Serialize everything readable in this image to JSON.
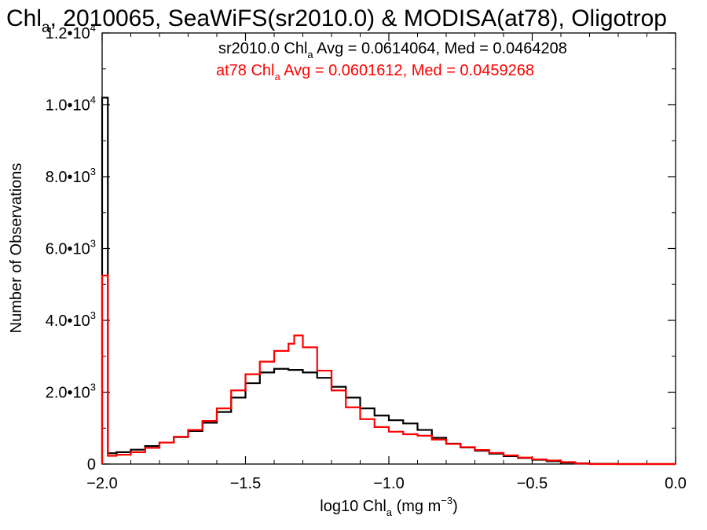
{
  "chart_data": {
    "type": "line",
    "title": {
      "pre": "Chl",
      "sub": "a",
      "post": ", 2010065, SeaWiFS(sr2010.0) & MODISA(at78), Oligotrop"
    },
    "xlabel": {
      "pre": "log10 Chl",
      "sub": "a",
      "post": " (mg m",
      "sup": "−3",
      "close": ")"
    },
    "ylabel": "Number of Observations",
    "xlim": [
      -2.0,
      0.0
    ],
    "ylim": [
      0,
      12000
    ],
    "xticks": [
      {
        "value": -2.0,
        "label": "−2.0"
      },
      {
        "value": -1.5,
        "label": "−1.5"
      },
      {
        "value": -1.0,
        "label": "−1.0"
      },
      {
        "value": -0.5,
        "label": "−0.5"
      },
      {
        "value": 0.0,
        "label": "0.0"
      }
    ],
    "yticks": [
      {
        "value": 0,
        "mant": "0",
        "exp": ""
      },
      {
        "value": 2000,
        "mant": "2.0•10",
        "exp": "3"
      },
      {
        "value": 4000,
        "mant": "4.0•10",
        "exp": "3"
      },
      {
        "value": 6000,
        "mant": "6.0•10",
        "exp": "3"
      },
      {
        "value": 8000,
        "mant": "8.0•10",
        "exp": "3"
      },
      {
        "value": 10000,
        "mant": "1.0•10",
        "exp": "4"
      },
      {
        "value": 12000,
        "mant": "1.2•10",
        "exp": "4"
      }
    ],
    "annotations": [
      {
        "pre": "sr2010.0 Chl",
        "sub": "a",
        "post": " Avg = 0.0614064, Med = 0.0464208",
        "color": "#000000"
      },
      {
        "pre": "at78 Chl",
        "sub": "a",
        "post": " Avg = 0.0601612, Med = 0.0459268",
        "color": "#ff0000"
      }
    ],
    "series": [
      {
        "color": "#000000",
        "step": "histogram",
        "x": [
          -2.0,
          -1.98,
          -1.95,
          -1.9,
          -1.85,
          -1.8,
          -1.75,
          -1.7,
          -1.65,
          -1.6,
          -1.55,
          -1.5,
          -1.45,
          -1.4,
          -1.35,
          -1.3,
          -1.25,
          -1.2,
          -1.15,
          -1.1,
          -1.05,
          -1.0,
          -0.95,
          -0.9,
          -0.85,
          -0.8,
          -0.75,
          -0.7,
          -0.65,
          -0.6,
          -0.55,
          -0.5,
          -0.45,
          -0.4,
          -0.35,
          -0.3,
          -0.2,
          -0.1,
          0.0
        ],
        "y": [
          10200,
          300,
          330,
          400,
          500,
          600,
          750,
          920,
          1150,
          1450,
          1850,
          2250,
          2550,
          2650,
          2620,
          2550,
          2400,
          2150,
          1850,
          1550,
          1350,
          1220,
          1130,
          950,
          730,
          570,
          460,
          370,
          290,
          220,
          170,
          120,
          80,
          40,
          20,
          5,
          0,
          0,
          0
        ]
      },
      {
        "color": "#ff0000",
        "step": "histogram",
        "x": [
          -2.0,
          -1.98,
          -1.95,
          -1.9,
          -1.85,
          -1.8,
          -1.75,
          -1.7,
          -1.65,
          -1.6,
          -1.55,
          -1.5,
          -1.45,
          -1.4,
          -1.35,
          -1.33,
          -1.3,
          -1.25,
          -1.2,
          -1.15,
          -1.1,
          -1.05,
          -1.0,
          -0.95,
          -0.9,
          -0.85,
          -0.8,
          -0.75,
          -0.7,
          -0.65,
          -0.6,
          -0.55,
          -0.5,
          -0.45,
          -0.4,
          -0.35,
          -0.3,
          -0.2,
          -0.1,
          0.0
        ],
        "y": [
          5250,
          230,
          260,
          330,
          450,
          600,
          760,
          950,
          1200,
          1550,
          2050,
          2500,
          2850,
          3150,
          3350,
          3580,
          3250,
          2600,
          2050,
          1580,
          1250,
          1030,
          900,
          830,
          790,
          680,
          560,
          470,
          390,
          310,
          240,
          180,
          130,
          100,
          55,
          15,
          0,
          0,
          0,
          0
        ]
      }
    ]
  }
}
